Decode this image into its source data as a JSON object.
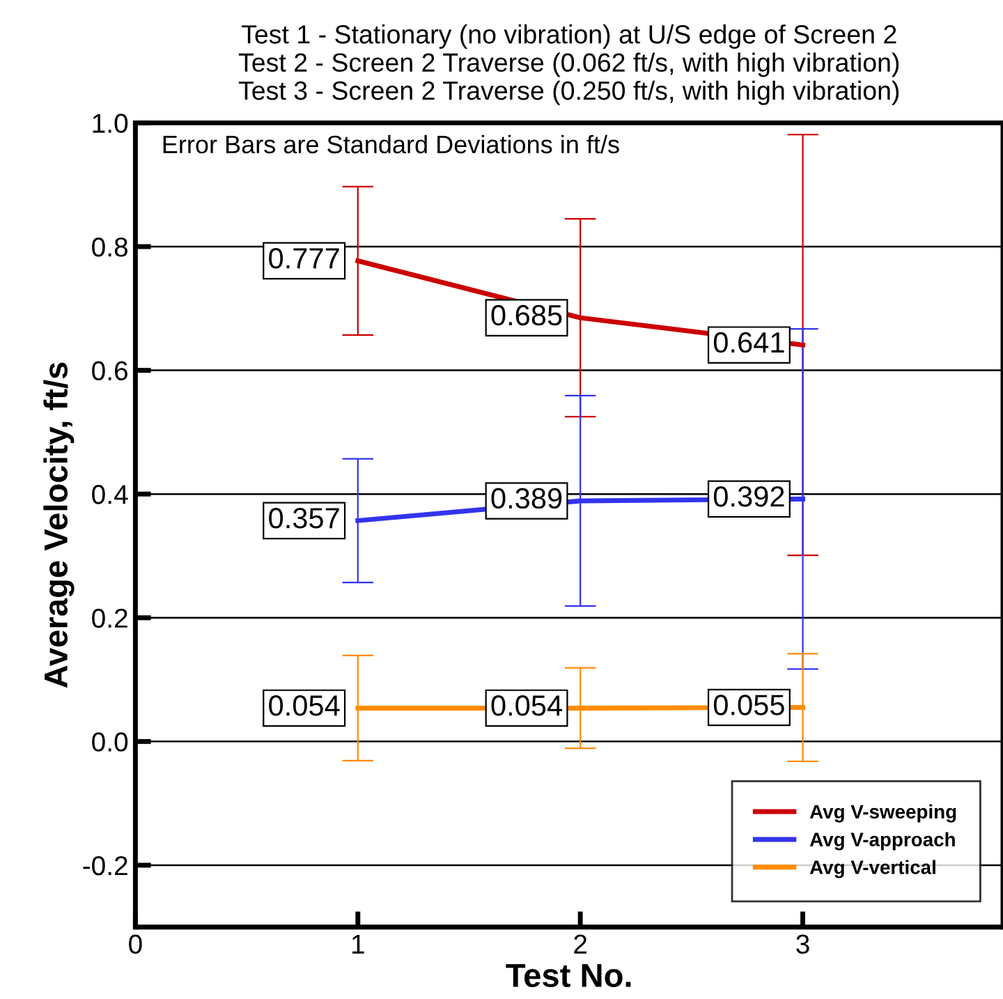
{
  "chart_data": {
    "type": "line",
    "title": "Test 1 - Stationary (no vibration) at U/S edge of Screen 2\nTest 2 - Screen 2 Traverse (0.062 ft/s, with high vibration)\nTest 3 - Screen 2 Traverse (0.250 ft/s, with high vibration)",
    "xlabel": "Test No.",
    "ylabel": "Average Velocity, ft/s",
    "annotations": [
      "Error Bars are Standard Deviations in ft/s"
    ],
    "x": [
      1,
      2,
      3
    ],
    "series": [
      {
        "name": "Avg V-sweeping",
        "color": "#cc0000",
        "values": [
          0.777,
          0.685,
          0.641
        ],
        "errors": [
          0.12,
          0.16,
          0.34
        ]
      },
      {
        "name": "Avg V-approach",
        "color": "#3333ee",
        "values": [
          0.357,
          0.389,
          0.392
        ],
        "errors": [
          0.1,
          0.17,
          0.275
        ]
      },
      {
        "name": "Avg V-vertical",
        "color": "#ff8c00",
        "values": [
          0.054,
          0.054,
          0.055
        ],
        "errors": [
          0.085,
          0.065,
          0.087
        ]
      }
    ],
    "xlim": [
      0,
      3.9
    ],
    "xticks": [
      0,
      1,
      2,
      3
    ],
    "ylim": [
      -0.3,
      1.0
    ],
    "yticks": [
      {
        "value": -0.2,
        "label": "-0.2"
      },
      {
        "value": 0,
        "label": "0.0"
      },
      {
        "value": 0.2,
        "label": "0.2"
      },
      {
        "value": 0.4,
        "label": "0.4"
      },
      {
        "value": 0.6,
        "label": "0.6"
      },
      {
        "value": 0.8,
        "label": "0.8"
      },
      {
        "value": 1,
        "label": "1.0"
      }
    ],
    "grid": "y",
    "legend": "bottom right",
    "data_labels": true
  }
}
